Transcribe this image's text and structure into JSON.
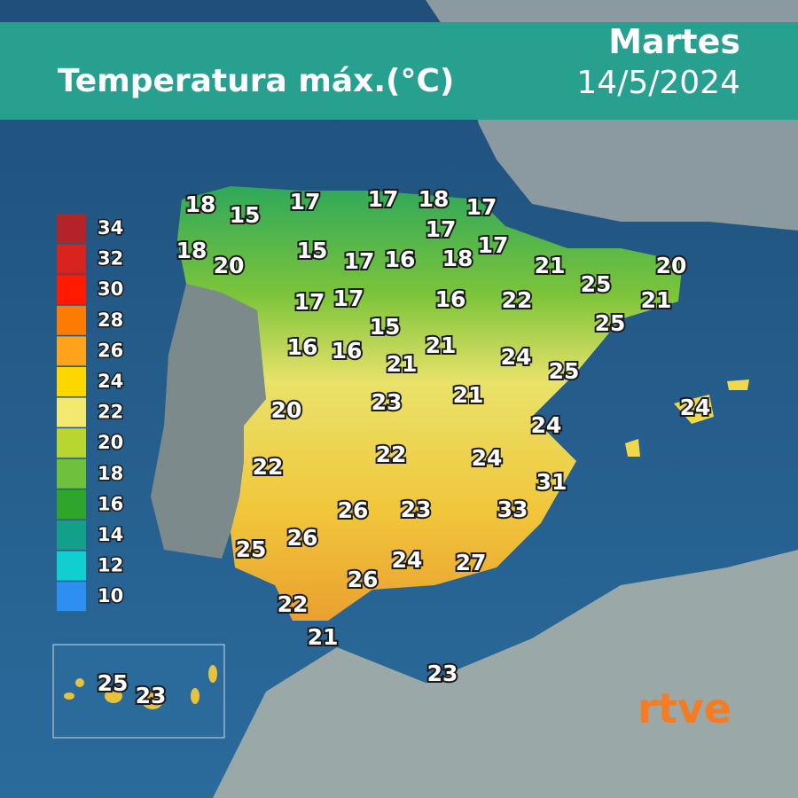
{
  "header": {
    "title": "Temperatura máx.(°C)",
    "day": "Martes",
    "date": "14/5/2024"
  },
  "legend": [
    {
      "value": 34,
      "color": "#b5232a"
    },
    {
      "value": 32,
      "color": "#d8231f"
    },
    {
      "value": 30,
      "color": "#ff1a00"
    },
    {
      "value": 28,
      "color": "#ff7a00"
    },
    {
      "value": 26,
      "color": "#ffa31a"
    },
    {
      "value": 24,
      "color": "#ffd700"
    },
    {
      "value": 22,
      "color": "#f3e870"
    },
    {
      "value": 20,
      "color": "#b8d630"
    },
    {
      "value": 18,
      "color": "#6fc13c"
    },
    {
      "value": 16,
      "color": "#2fa52c"
    },
    {
      "value": 14,
      "color": "#13a08a"
    },
    {
      "value": 12,
      "color": "#10cfcf"
    },
    {
      "value": 10,
      "color": "#2f8ff0"
    }
  ],
  "map_labels": [
    18,
    15,
    17,
    17,
    18,
    17,
    17,
    18,
    20,
    15,
    17,
    16,
    18,
    17,
    21,
    20,
    25,
    21,
    17,
    17,
    16,
    22,
    25,
    15,
    16,
    16,
    21,
    21,
    24,
    25,
    20,
    23,
    21,
    24,
    24,
    22,
    22,
    24,
    31,
    26,
    23,
    33,
    25,
    26,
    24,
    27,
    26,
    22,
    21,
    23
  ],
  "inset_labels": [
    25,
    23
  ],
  "logo": "rtve"
}
